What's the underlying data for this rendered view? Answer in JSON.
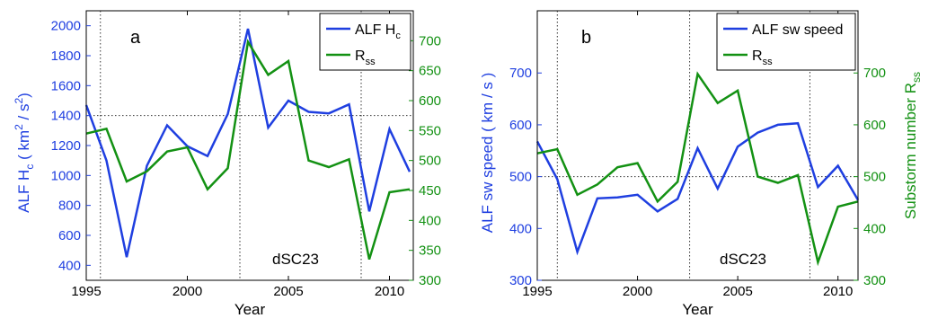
{
  "chart_data": [
    {
      "type": "line",
      "panel_label": "a",
      "annotation": "dSC23",
      "xlabel": "Year",
      "x_ticks": [
        "1995",
        "2000",
        "2005",
        "2010"
      ],
      "xlim": [
        1995,
        2011
      ],
      "x": [
        1995,
        1996,
        1997,
        1998,
        1999,
        2000,
        2001,
        2002,
        2003,
        2004,
        2005,
        2006,
        2007,
        2008,
        2009,
        2010,
        2011
      ],
      "left_axis": {
        "label_text": "ALF  H",
        "label_sub": "c",
        "label_unit_open": " ( km",
        "label_unit_sup1": "2",
        "label_unit_mid": " / s",
        "label_unit_sup2": "2",
        "label_unit_close": ")",
        "ylim": [
          300,
          2100
        ],
        "ticks": [
          "400",
          "600",
          "800",
          "1000",
          "1200",
          "1400",
          "1600",
          "1800",
          "2000"
        ],
        "color": "#1f3fe0"
      },
      "right_axis": {
        "ylim": [
          300,
          750
        ],
        "ticks": [
          "300",
          "350",
          "400",
          "450",
          "500",
          "550",
          "600",
          "650",
          "700"
        ],
        "color": "#139113"
      },
      "series": [
        {
          "name": "ALF H",
          "name_sub": "c",
          "axis": "left",
          "color": "#1f3fe0",
          "values": [
            1470,
            1100,
            455,
            1065,
            1335,
            1195,
            1130,
            1410,
            1980,
            1320,
            1500,
            1425,
            1415,
            1475,
            760,
            1310,
            1025
          ]
        },
        {
          "name": "R",
          "name_sub": "ss",
          "axis": "right",
          "color": "#139113",
          "values": [
            545,
            553,
            465,
            482,
            515,
            522,
            452,
            487,
            698,
            643,
            666,
            500,
            489,
            502,
            335,
            447,
            452
          ]
        }
      ],
      "h_reference_left": 1400,
      "v_reference_x": [
        1995.7,
        2002.6,
        2008.6
      ]
    },
    {
      "type": "line",
      "panel_label": "b",
      "annotation": "dSC23",
      "xlabel": "Year",
      "x_ticks": [
        "1995",
        "2000",
        "2005",
        "2010"
      ],
      "xlim": [
        1995,
        2011
      ],
      "x": [
        1995,
        1996,
        1997,
        1998,
        1999,
        2000,
        2001,
        2002,
        2003,
        2004,
        2005,
        2006,
        2007,
        2008,
        2009,
        2010,
        2011
      ],
      "left_axis": {
        "label": "ALF sw speed ( km / s )",
        "ylim": [
          300,
          820
        ],
        "ticks": [
          "300",
          "400",
          "500",
          "600",
          "700"
        ],
        "color": "#1f3fe0"
      },
      "right_axis": {
        "label_text": "Substorm number  R",
        "label_sub": "ss",
        "ylim": [
          300,
          820
        ],
        "ticks": [
          "300",
          "400",
          "500",
          "600",
          "700"
        ],
        "color": "#139113"
      },
      "series": [
        {
          "name": "ALF sw speed",
          "axis": "left",
          "color": "#1f3fe0",
          "values": [
            568,
            495,
            355,
            458,
            460,
            465,
            433,
            457,
            555,
            477,
            558,
            585,
            600,
            603,
            480,
            521,
            455
          ]
        },
        {
          "name": "R",
          "name_sub": "ss",
          "axis": "right",
          "color": "#139113",
          "values": [
            545,
            553,
            465,
            485,
            518,
            526,
            452,
            490,
            698,
            642,
            666,
            500,
            488,
            503,
            335,
            442,
            452
          ]
        }
      ],
      "h_reference_left": 500,
      "v_reference_x": [
        1996,
        2002.6,
        2008.6
      ]
    }
  ]
}
